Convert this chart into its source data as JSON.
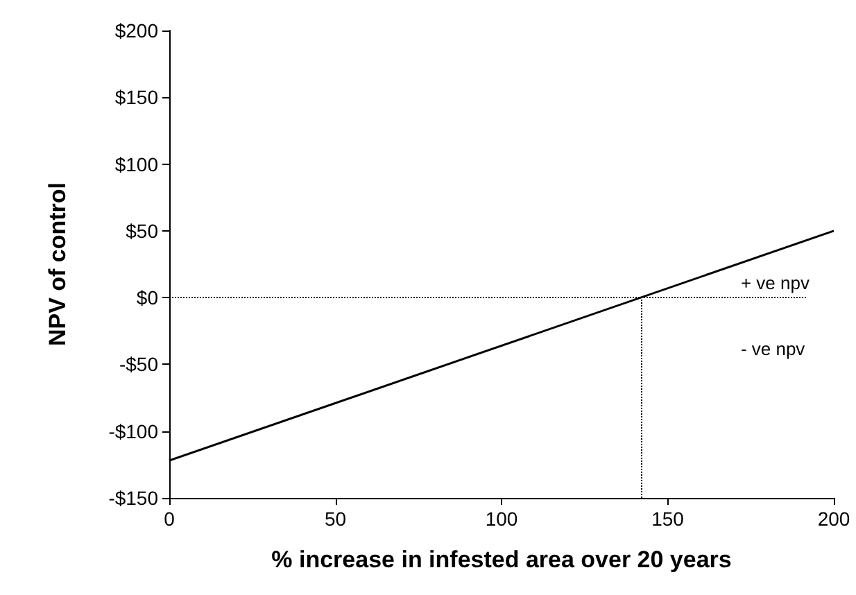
{
  "chart_data": {
    "type": "line",
    "xlabel": "% increase in infested area over 20 years",
    "ylabel": "NPV of control",
    "x": [
      0,
      200
    ],
    "series": [
      {
        "color": "#000000",
        "values": [
          -122,
          50
        ]
      }
    ],
    "xlim": [
      0,
      200
    ],
    "xticks": [
      0,
      50,
      100,
      150,
      200
    ],
    "ylim": [
      -150,
      200
    ],
    "yticks": [
      {
        "value": -150,
        "label": "-$150"
      },
      {
        "value": -100,
        "label": "-$100"
      },
      {
        "value": -50,
        "label": "-$50"
      },
      {
        "value": 0,
        "label": "$0"
      },
      {
        "value": 50,
        "label": "$50"
      },
      {
        "value": 100,
        "label": "$100"
      },
      {
        "value": 150,
        "label": "$150"
      },
      {
        "value": 200,
        "label": "$200"
      }
    ],
    "ref_lines": [
      {
        "axis": "y",
        "value": 0,
        "line_style": "dotted",
        "color": "#000000"
      },
      {
        "axis": "x",
        "value": 142,
        "line_style": "dotted",
        "color": "#000000"
      }
    ],
    "annotations": [
      "+ ve npv",
      "- ve npv"
    ],
    "grid": false,
    "marker": "none",
    "line_style": "solid"
  }
}
